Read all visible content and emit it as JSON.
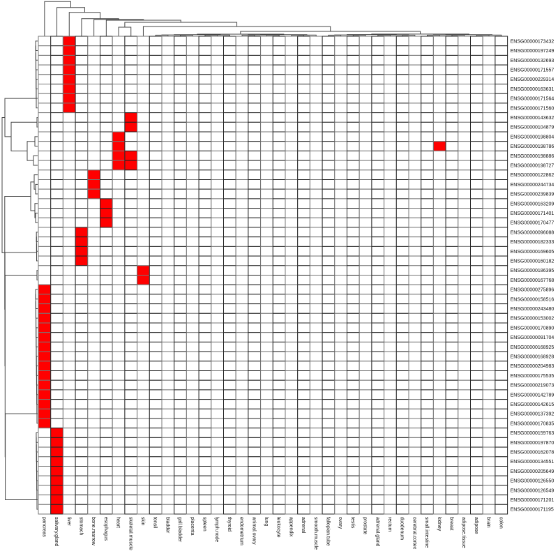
{
  "chart_data": {
    "type": "heatmap",
    "title": "",
    "xlabel": "",
    "ylabel": "",
    "columns": [
      "pancreas",
      "salivary.gland",
      "liver",
      "stomach",
      "bone.marrow",
      "esophagus",
      "heart",
      "skeletal.muscle",
      "skin",
      "tonsil",
      "bladder",
      "gall.bladder",
      "placenta",
      "spleen",
      "lymph.node",
      "thyroid",
      "endometrium",
      "animal.ovary",
      "lung",
      "leukocyte",
      "appendix",
      "adrenal",
      "smooth.muscle",
      "fallopian.tube",
      "ovary",
      "testis",
      "prostate",
      "adrenal.gland",
      "rectum",
      "duodenum",
      "cerebral.cortex",
      "small.intestine",
      "kidney",
      "breast",
      "adipose.tissue",
      "adipose",
      "brain",
      "colon"
    ],
    "rows": [
      "ENSG00000173432",
      "ENSG00000197249",
      "ENSG00000132693",
      "ENSG00000171557",
      "ENSG00000229314",
      "ENSG00000163631",
      "ENSG00000171564",
      "ENSG00000171560",
      "ENSG00000143632",
      "ENSG00000104879",
      "ENSG00000198804",
      "ENSG00000198786",
      "ENSG00000198886",
      "ENSG00000198727",
      "ENSG00000122862",
      "ENSG00000244734",
      "ENSG00000239839",
      "ENSG00000163209",
      "ENSG00000171401",
      "ENSG00000170477",
      "ENSG00000096088",
      "ENSG00000182333",
      "ENSG00000169605",
      "ENSG00000160182",
      "ENSG00000186395",
      "ENSG00000167768",
      "ENSG00000275896",
      "ENSG00000158516",
      "ENSG00000243480",
      "ENSG00000153002",
      "ENSG00000170890",
      "ENSG00000091704",
      "ENSG00000168925",
      "ENSG00000168928",
      "ENSG00000204983",
      "ENSG00000175535",
      "ENSG00000219073",
      "ENSG00000142789",
      "ENSG00000142615",
      "ENSG00000137392",
      "ENSG00000170835",
      "ENSG00000159763",
      "ENSG00000197870",
      "ENSG00000162078",
      "ENSG00000134551",
      "ENSG00000205649",
      "ENSG00000126550",
      "ENSG00000126549",
      "ENSG00000171201",
      "ENSG00000171195"
    ],
    "cells_on": [
      {
        "tissue": "liver",
        "genes": [
          "ENSG00000173432",
          "ENSG00000197249",
          "ENSG00000132693",
          "ENSG00000171557",
          "ENSG00000229314",
          "ENSG00000163631",
          "ENSG00000171564",
          "ENSG00000171560"
        ]
      },
      {
        "tissue": "skeletal.muscle",
        "genes": [
          "ENSG00000143632",
          "ENSG00000104879",
          "ENSG00000198886",
          "ENSG00000198727"
        ]
      },
      {
        "tissue": "heart",
        "genes": [
          "ENSG00000198804",
          "ENSG00000198786",
          "ENSG00000198886",
          "ENSG00000198727"
        ]
      },
      {
        "tissue": "kidney",
        "genes": [
          "ENSG00000198786"
        ]
      },
      {
        "tissue": "bone.marrow",
        "genes": [
          "ENSG00000122862",
          "ENSG00000244734",
          "ENSG00000239839"
        ]
      },
      {
        "tissue": "esophagus",
        "genes": [
          "ENSG00000163209",
          "ENSG00000171401",
          "ENSG00000170477"
        ]
      },
      {
        "tissue": "stomach",
        "genes": [
          "ENSG00000096088",
          "ENSG00000182333",
          "ENSG00000169605",
          "ENSG00000160182"
        ]
      },
      {
        "tissue": "skin",
        "genes": [
          "ENSG00000186395",
          "ENSG00000167768"
        ]
      },
      {
        "tissue": "pancreas",
        "genes": [
          "ENSG00000275896",
          "ENSG00000158516",
          "ENSG00000243480",
          "ENSG00000153002",
          "ENSG00000170890",
          "ENSG00000091704",
          "ENSG00000168925",
          "ENSG00000168928",
          "ENSG00000204983",
          "ENSG00000175535",
          "ENSG00000219073",
          "ENSG00000142789",
          "ENSG00000142615",
          "ENSG00000137392",
          "ENSG00000170835"
        ]
      },
      {
        "tissue": "salivary.gland",
        "genes": [
          "ENSG00000159763",
          "ENSG00000197870",
          "ENSG00000162078",
          "ENSG00000134551",
          "ENSG00000205649",
          "ENSG00000126550",
          "ENSG00000126549",
          "ENSG00000171201",
          "ENSG00000171195"
        ]
      }
    ],
    "colors": {
      "on": "#ff0000",
      "off": "#ffffff",
      "grid": "#222222"
    },
    "dendrograms": {
      "rows": true,
      "columns": true
    },
    "legend": "none"
  }
}
